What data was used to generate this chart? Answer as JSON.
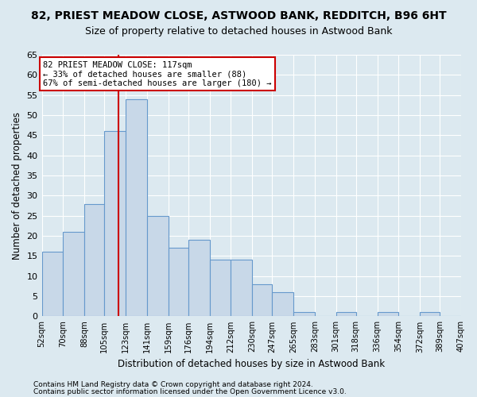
{
  "title1": "82, PRIEST MEADOW CLOSE, ASTWOOD BANK, REDDITCH, B96 6HT",
  "title2": "Size of property relative to detached houses in Astwood Bank",
  "xlabel": "Distribution of detached houses by size in Astwood Bank",
  "ylabel": "Number of detached properties",
  "footnote1": "Contains HM Land Registry data © Crown copyright and database right 2024.",
  "footnote2": "Contains public sector information licensed under the Open Government Licence v3.0.",
  "bins": [
    52,
    70,
    88,
    105,
    123,
    141,
    159,
    176,
    194,
    212,
    230,
    247,
    265,
    283,
    301,
    318,
    336,
    354,
    372,
    389,
    407
  ],
  "bin_labels": [
    "52sqm",
    "70sqm",
    "88sqm",
    "105sqm",
    "123sqm",
    "141sqm",
    "159sqm",
    "176sqm",
    "194sqm",
    "212sqm",
    "230sqm",
    "247sqm",
    "265sqm",
    "283sqm",
    "301sqm",
    "318sqm",
    "336sqm",
    "354sqm",
    "372sqm",
    "389sqm",
    "407sqm"
  ],
  "values": [
    16,
    21,
    28,
    46,
    54,
    25,
    17,
    19,
    14,
    14,
    8,
    6,
    1,
    0,
    1,
    0,
    1,
    0,
    1,
    0
  ],
  "bar_color": "#c8d8e8",
  "bar_edge_color": "#6699cc",
  "property_size": 117,
  "vline_color": "#cc0000",
  "annotation_line1": "82 PRIEST MEADOW CLOSE: 117sqm",
  "annotation_line2": "← 33% of detached houses are smaller (88)",
  "annotation_line3": "67% of semi-detached houses are larger (180) →",
  "annotation_box_color": "#ffffff",
  "annotation_box_edge_color": "#cc0000",
  "ylim": [
    0,
    65
  ],
  "yticks": [
    0,
    5,
    10,
    15,
    20,
    25,
    30,
    35,
    40,
    45,
    50,
    55,
    60,
    65
  ],
  "background_color": "#dce9f0",
  "plot_bg_color": "#dce9f0",
  "grid_color": "#ffffff",
  "title1_fontsize": 10,
  "title2_fontsize": 9,
  "xlabel_fontsize": 8.5,
  "ylabel_fontsize": 8.5,
  "footnote_fontsize": 6.5
}
